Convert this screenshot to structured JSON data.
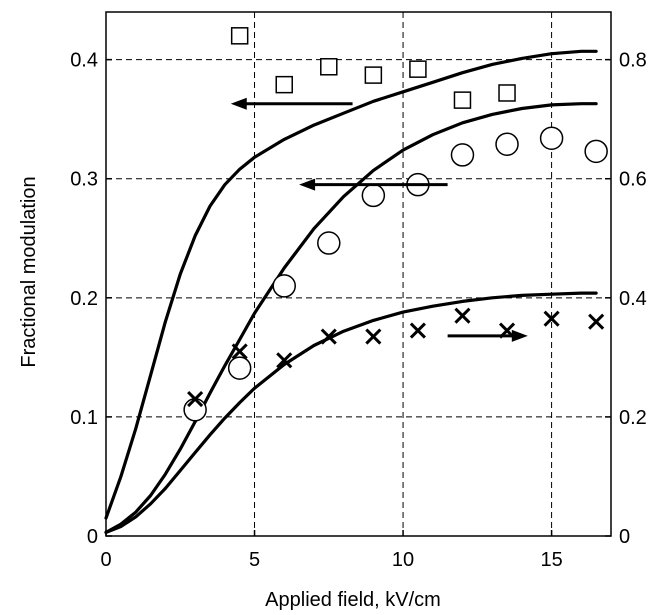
{
  "chart_data": {
    "type": "line",
    "title": "",
    "xlabel": "Applied field, kV/cm",
    "ylabel": "Fractional modulation",
    "xlim": [
      0,
      17
    ],
    "ylim": [
      0,
      0.44
    ],
    "y2lim": [
      0,
      0.88
    ],
    "grid": true,
    "x_ticks": [
      0,
      5,
      10,
      15
    ],
    "x_tick_labels": [
      "0",
      "5",
      "10",
      "15"
    ],
    "y_ticks": [
      0,
      0.1,
      0.2,
      0.3,
      0.4
    ],
    "y_tick_labels": [
      "0",
      "0.1",
      "0.2",
      "0.3",
      "0.4"
    ],
    "y2_ticks": [
      0,
      0.2,
      0.4,
      0.6,
      0.8
    ],
    "y2_tick_labels": [
      "0",
      "0.2",
      "0.4",
      "0.6",
      "0.8"
    ],
    "series": [
      {
        "marker": "square",
        "axis": "left",
        "x": [
          4.5,
          6,
          7.5,
          9,
          10.5,
          12,
          13.5
        ],
        "y": [
          0.42,
          0.379,
          0.394,
          0.387,
          0.392,
          0.366,
          0.372
        ]
      },
      {
        "marker": "circle",
        "axis": "left",
        "x": [
          3,
          4.5,
          6,
          7.5,
          9,
          10.5,
          12,
          13.5,
          15,
          16.5
        ],
        "y": [
          0.106,
          0.141,
          0.21,
          0.246,
          0.286,
          0.295,
          0.32,
          0.329,
          0.334,
          0.323
        ]
      },
      {
        "marker": "cross",
        "axis": "right",
        "x": [
          3,
          4.5,
          6,
          7.5,
          9,
          10.5,
          12,
          13.5,
          15,
          16.5
        ],
        "y": [
          0.23,
          0.31,
          0.295,
          0.335,
          0.335,
          0.345,
          0.37,
          0.345,
          0.365,
          0.36
        ]
      },
      {
        "marker": "none",
        "axis": "left",
        "x": [
          0,
          0.5,
          1,
          1.5,
          2,
          2.5,
          3,
          3.5,
          4,
          4.5,
          5,
          6,
          7,
          8,
          9,
          10,
          11,
          12,
          13,
          14,
          15,
          16,
          16.5
        ],
        "y": [
          0.015,
          0.05,
          0.09,
          0.135,
          0.18,
          0.22,
          0.252,
          0.277,
          0.295,
          0.308,
          0.318,
          0.333,
          0.345,
          0.355,
          0.365,
          0.373,
          0.381,
          0.389,
          0.396,
          0.401,
          0.405,
          0.407,
          0.407
        ]
      },
      {
        "marker": "none",
        "axis": "left",
        "x": [
          0,
          0.5,
          1,
          1.5,
          2,
          2.5,
          3,
          3.5,
          4,
          4.5,
          5,
          6,
          7,
          8,
          9,
          10,
          11,
          12,
          13,
          14,
          15,
          16,
          16.5
        ],
        "y": [
          0.003,
          0.01,
          0.02,
          0.034,
          0.052,
          0.073,
          0.096,
          0.12,
          0.143,
          0.165,
          0.187,
          0.225,
          0.258,
          0.285,
          0.307,
          0.324,
          0.337,
          0.347,
          0.354,
          0.359,
          0.362,
          0.363,
          0.363
        ]
      },
      {
        "marker": "none",
        "axis": "left",
        "x": [
          0,
          0.5,
          1,
          1.5,
          2,
          2.5,
          3,
          3.5,
          4,
          4.5,
          5,
          6,
          7,
          8,
          9,
          10,
          11,
          12,
          13,
          14,
          15,
          16,
          16.5
        ],
        "y": [
          0.003,
          0.008,
          0.016,
          0.027,
          0.04,
          0.055,
          0.07,
          0.085,
          0.099,
          0.112,
          0.124,
          0.144,
          0.16,
          0.172,
          0.181,
          0.188,
          0.193,
          0.197,
          0.2,
          0.202,
          0.203,
          0.204,
          0.204
        ]
      }
    ],
    "annotations": [
      {
        "type": "arrow",
        "direction": "left",
        "from": [
          8.3,
          0.363
        ],
        "to": [
          4.2,
          0.363
        ]
      },
      {
        "type": "arrow",
        "direction": "left",
        "from": [
          11.5,
          0.295
        ],
        "to": [
          6.5,
          0.295
        ]
      },
      {
        "type": "arrow",
        "direction": "right",
        "from": [
          11.5,
          0.168
        ],
        "to": [
          14.2,
          0.168
        ]
      }
    ]
  }
}
